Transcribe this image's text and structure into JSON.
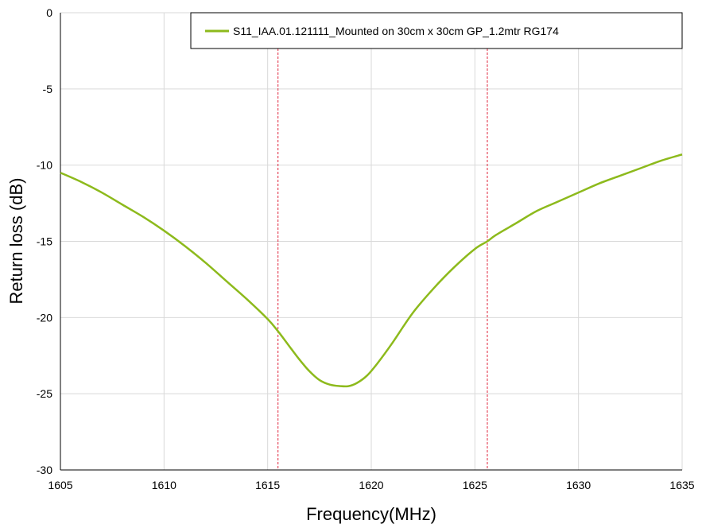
{
  "chart_data": {
    "type": "line",
    "title": "",
    "xlabel": "Frequency(MHz)",
    "ylabel": "Return loss (dB)",
    "xlim": [
      1605,
      1635
    ],
    "ylim": [
      -30,
      0
    ],
    "x_ticks": [
      1605,
      1610,
      1615,
      1620,
      1625,
      1630,
      1635
    ],
    "y_ticks": [
      0,
      -5,
      -10,
      -15,
      -20,
      -25,
      -30
    ],
    "grid": true,
    "legend_position": "top-right",
    "series": [
      {
        "name": "S11_IAA.01.121111_Mounted on 30cm x 30cm GP_1.2mtr RG174",
        "color": "#8dba1c",
        "x": [
          1605,
          1606,
          1607,
          1608,
          1609,
          1610,
          1611,
          1612,
          1613,
          1614,
          1615,
          1615.5,
          1616,
          1616.5,
          1617,
          1617.5,
          1618,
          1618.5,
          1618.9,
          1619.3,
          1619.8,
          1620.3,
          1621,
          1622,
          1623,
          1624,
          1625,
          1625.6,
          1626,
          1627,
          1628,
          1629,
          1630,
          1631,
          1632,
          1633,
          1634,
          1635
        ],
        "values": [
          -10.5,
          -11.1,
          -11.8,
          -12.6,
          -13.4,
          -14.3,
          -15.3,
          -16.4,
          -17.6,
          -18.8,
          -20.1,
          -20.9,
          -21.8,
          -22.7,
          -23.5,
          -24.1,
          -24.4,
          -24.5,
          -24.5,
          -24.3,
          -23.8,
          -23.0,
          -21.7,
          -19.7,
          -18.1,
          -16.7,
          -15.5,
          -15.0,
          -14.6,
          -13.8,
          -13.0,
          -12.4,
          -11.8,
          -11.2,
          -10.7,
          -10.2,
          -9.7,
          -9.3
        ]
      }
    ],
    "markers": [
      {
        "x": 1615.5,
        "color": "#e0243b",
        "style": "dashed"
      },
      {
        "x": 1625.6,
        "color": "#e0243b",
        "style": "dashed"
      }
    ]
  }
}
